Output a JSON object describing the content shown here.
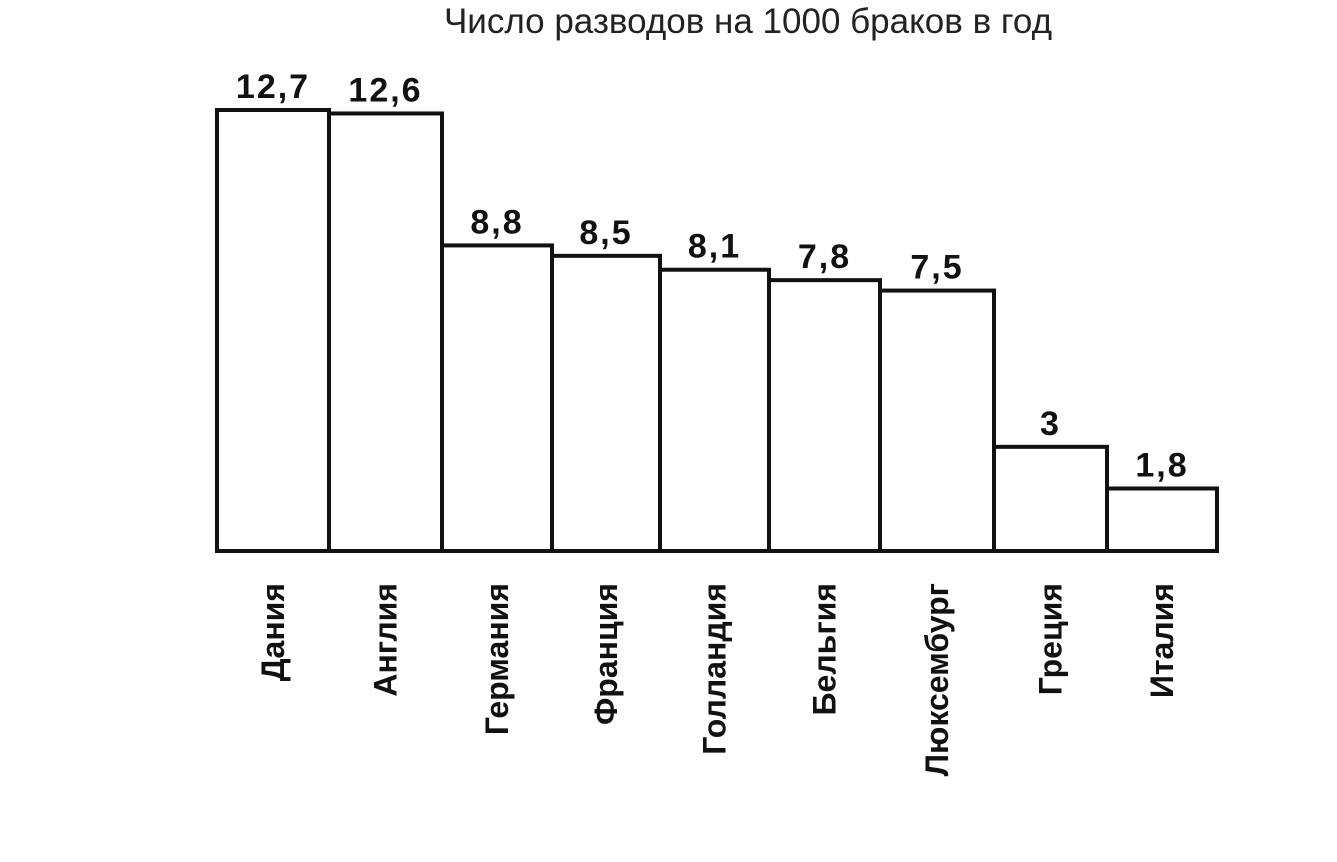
{
  "chart_data": {
    "type": "bar",
    "title": "Число разводов на 1000 браков в год",
    "xlabel": "",
    "ylabel": "",
    "categories": [
      "Дания",
      "Англия",
      "Германия",
      "Франция",
      "Голландия",
      "Бельгия",
      "Люксембург",
      "Греция",
      "Италия"
    ],
    "values": [
      12.7,
      12.6,
      8.8,
      8.5,
      8.1,
      7.8,
      7.5,
      3,
      1.8
    ],
    "value_labels": [
      "12,7",
      "12,6",
      "8,8",
      "8,5",
      "8,1",
      "7,8",
      "7,5",
      "3",
      "1,8"
    ],
    "ylim": [
      0,
      12.7
    ],
    "grid": false,
    "legend": "none",
    "colors": {
      "bar_fill": "#ffffff",
      "bar_stroke": "#111111",
      "text": "#111111"
    }
  }
}
